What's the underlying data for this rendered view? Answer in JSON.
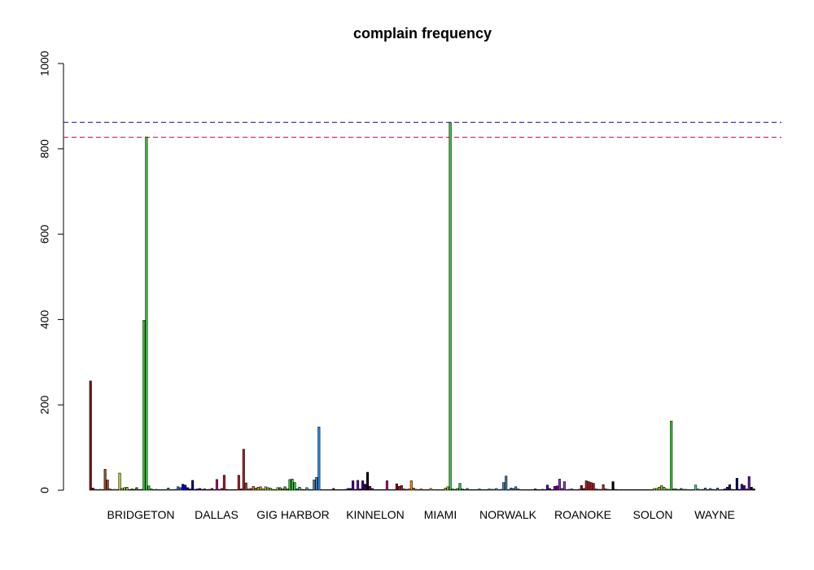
{
  "chart_data": {
    "type": "bar",
    "title": "complain frequency",
    "xlabel": "",
    "ylabel": "",
    "ylim": [
      0,
      1000
    ],
    "yticks": [
      "0",
      "200",
      "400",
      "600",
      "800",
      "1000"
    ],
    "x_tick_labels": [
      "BRIDGETON",
      "DALLAS",
      "GIG HARBOR",
      "KINNELON",
      "MIAMI",
      "NORWALK",
      "ROANOKE",
      "SOLON",
      "WAYNE"
    ],
    "reference_lines": [
      {
        "value": 862,
        "color": "#0000cc",
        "style": "dashed"
      },
      {
        "value": 827,
        "color": "#cc0033",
        "style": "dashed"
      }
    ],
    "bars": [
      {
        "value": 256,
        "color": "#8b0000"
      },
      {
        "value": 5,
        "color": "#8b0000"
      },
      {
        "value": 2,
        "color": "#556b2f"
      },
      {
        "value": 1,
        "color": "#a0522d"
      },
      {
        "value": 2,
        "color": "#a0522d"
      },
      {
        "value": 1,
        "color": "#556b2f"
      },
      {
        "value": 49,
        "color": "#a0522d"
      },
      {
        "value": 24,
        "color": "#a0522d"
      },
      {
        "value": 3,
        "color": "#d2691e"
      },
      {
        "value": 1,
        "color": "#556b2f"
      },
      {
        "value": 2,
        "color": "#eeee00"
      },
      {
        "value": 1,
        "color": "#556b2f"
      },
      {
        "value": 40,
        "color": "#cccc33"
      },
      {
        "value": 4,
        "color": "#9acd32"
      },
      {
        "value": 6,
        "color": "#9acd32"
      },
      {
        "value": 7,
        "color": "#9acd32"
      },
      {
        "value": 1,
        "color": "#9acd32"
      },
      {
        "value": 3,
        "color": "#556b2f"
      },
      {
        "value": 2,
        "color": "#556b2f"
      },
      {
        "value": 6,
        "color": "#556b2f"
      },
      {
        "value": 1,
        "color": "#556b2f"
      },
      {
        "value": 2,
        "color": "#556b2f"
      },
      {
        "value": 398,
        "color": "#32cd32"
      },
      {
        "value": 828,
        "color": "#32cd32"
      },
      {
        "value": 10,
        "color": "#32cd32"
      },
      {
        "value": 3,
        "color": "#3cb371"
      },
      {
        "value": 1,
        "color": "#2e8b57"
      },
      {
        "value": 2,
        "color": "#2e8b57"
      },
      {
        "value": 1,
        "color": "#2e8b57"
      },
      {
        "value": 1,
        "color": "#2e8b57"
      },
      {
        "value": 1,
        "color": "#2e8b57"
      },
      {
        "value": 1,
        "color": "#2e8b57"
      },
      {
        "value": 5,
        "color": "#2e8b57"
      },
      {
        "value": 1,
        "color": "#2e8b57"
      },
      {
        "value": 1,
        "color": "#2e8b57"
      },
      {
        "value": 2,
        "color": "#4682b4"
      },
      {
        "value": 8,
        "color": "#4169e1"
      },
      {
        "value": 6,
        "color": "#4169e1"
      },
      {
        "value": 14,
        "color": "#0000cd"
      },
      {
        "value": 12,
        "color": "#0000cd"
      },
      {
        "value": 6,
        "color": "#0000cd"
      },
      {
        "value": 3,
        "color": "#4b0082"
      },
      {
        "value": 23,
        "color": "#00008b"
      },
      {
        "value": 2,
        "color": "#4b0082"
      },
      {
        "value": 3,
        "color": "#4b0082"
      },
      {
        "value": 4,
        "color": "#4b0082"
      },
      {
        "value": 2,
        "color": "#800080"
      },
      {
        "value": 3,
        "color": "#800080"
      },
      {
        "value": 1,
        "color": "#800080"
      },
      {
        "value": 2,
        "color": "#800080"
      },
      {
        "value": 4,
        "color": "#800080"
      },
      {
        "value": 1,
        "color": "#800080"
      },
      {
        "value": 25,
        "color": "#c71585"
      },
      {
        "value": 2,
        "color": "#c71585"
      },
      {
        "value": 4,
        "color": "#c71585"
      },
      {
        "value": 35,
        "color": "#b22222"
      },
      {
        "value": 2,
        "color": "#8b0000"
      },
      {
        "value": 1,
        "color": "#8b0000"
      },
      {
        "value": 1,
        "color": "#8b0000"
      },
      {
        "value": 1,
        "color": "#8b0000"
      },
      {
        "value": 1,
        "color": "#8b0000"
      },
      {
        "value": 35,
        "color": "#b22222"
      },
      {
        "value": 3,
        "color": "#8b0000"
      },
      {
        "value": 96,
        "color": "#b22222"
      },
      {
        "value": 17,
        "color": "#a0522d"
      },
      {
        "value": 3,
        "color": "#a0522d"
      },
      {
        "value": 4,
        "color": "#a0522d"
      },
      {
        "value": 9,
        "color": "#cd853f"
      },
      {
        "value": 5,
        "color": "#d2691e"
      },
      {
        "value": 7,
        "color": "#daa520"
      },
      {
        "value": 8,
        "color": "#daa520"
      },
      {
        "value": 3,
        "color": "#bdb76b"
      },
      {
        "value": 8,
        "color": "#bdb76b"
      },
      {
        "value": 6,
        "color": "#9acd32"
      },
      {
        "value": 5,
        "color": "#9acd32"
      },
      {
        "value": 2,
        "color": "#9acd32"
      },
      {
        "value": 1,
        "color": "#9acd32"
      },
      {
        "value": 6,
        "color": "#9acd32"
      },
      {
        "value": 6,
        "color": "#6b8e23"
      },
      {
        "value": 3,
        "color": "#6b8e23"
      },
      {
        "value": 8,
        "color": "#6b8e23"
      },
      {
        "value": 3,
        "color": "#228b22"
      },
      {
        "value": 25,
        "color": "#32cd32"
      },
      {
        "value": 26,
        "color": "#32cd32"
      },
      {
        "value": 18,
        "color": "#32cd32"
      },
      {
        "value": 3,
        "color": "#2e8b57"
      },
      {
        "value": 7,
        "color": "#3cb371"
      },
      {
        "value": 2,
        "color": "#2e8b57"
      },
      {
        "value": 1,
        "color": "#2e8b57"
      },
      {
        "value": 6,
        "color": "#20b2aa"
      },
      {
        "value": 2,
        "color": "#20b2aa"
      },
      {
        "value": 1,
        "color": "#20b2aa"
      },
      {
        "value": 24,
        "color": "#4682b4"
      },
      {
        "value": 30,
        "color": "#4682b4"
      },
      {
        "value": 148,
        "color": "#1e90ff"
      },
      {
        "value": 1,
        "color": "#4682b4"
      },
      {
        "value": 1,
        "color": "#4682b4"
      },
      {
        "value": 1,
        "color": "#4682b4"
      },
      {
        "value": 1,
        "color": "#4682b4"
      },
      {
        "value": 1,
        "color": "#4682b4"
      },
      {
        "value": 4,
        "color": "#191970"
      },
      {
        "value": 1,
        "color": "#191970"
      },
      {
        "value": 1,
        "color": "#191970"
      },
      {
        "value": 1,
        "color": "#191970"
      },
      {
        "value": 1,
        "color": "#191970"
      },
      {
        "value": 2,
        "color": "#191970"
      },
      {
        "value": 4,
        "color": "#191970"
      },
      {
        "value": 4,
        "color": "#191970"
      },
      {
        "value": 22,
        "color": "#4b0082"
      },
      {
        "value": 2,
        "color": "#4b0082"
      },
      {
        "value": 23,
        "color": "#6a0dad"
      },
      {
        "value": 3,
        "color": "#4b0082"
      },
      {
        "value": 22,
        "color": "#4b0082"
      },
      {
        "value": 14,
        "color": "#4b0082"
      },
      {
        "value": 42,
        "color": "#000000"
      },
      {
        "value": 9,
        "color": "#800080"
      },
      {
        "value": 4,
        "color": "#800080"
      },
      {
        "value": 1,
        "color": "#800080"
      },
      {
        "value": 1,
        "color": "#800080"
      },
      {
        "value": 1,
        "color": "#800080"
      },
      {
        "value": 1,
        "color": "#800080"
      },
      {
        "value": 1,
        "color": "#800080"
      },
      {
        "value": 22,
        "color": "#c71585"
      },
      {
        "value": 1,
        "color": "#c71585"
      },
      {
        "value": 1,
        "color": "#c71585"
      },
      {
        "value": 1,
        "color": "#c71585"
      },
      {
        "value": 15,
        "color": "#8b0000"
      },
      {
        "value": 9,
        "color": "#a52a2a"
      },
      {
        "value": 11,
        "color": "#a52a2a"
      },
      {
        "value": 3,
        "color": "#a52a2a"
      },
      {
        "value": 2,
        "color": "#a52a2a"
      },
      {
        "value": 3,
        "color": "#cd853f"
      },
      {
        "value": 22,
        "color": "#ff8c00"
      },
      {
        "value": 5,
        "color": "#d2691e"
      },
      {
        "value": 2,
        "color": "#d2691e"
      },
      {
        "value": 1,
        "color": "#d2691e"
      },
      {
        "value": 3,
        "color": "#d2691e"
      },
      {
        "value": 1,
        "color": "#d2691e"
      },
      {
        "value": 1,
        "color": "#d2691e"
      },
      {
        "value": 1,
        "color": "#d2691e"
      },
      {
        "value": 4,
        "color": "#daa520"
      },
      {
        "value": 1,
        "color": "#daa520"
      },
      {
        "value": 1,
        "color": "#daa520"
      },
      {
        "value": 1,
        "color": "#daa520"
      },
      {
        "value": 1,
        "color": "#daa520"
      },
      {
        "value": 1,
        "color": "#daa520"
      },
      {
        "value": 5,
        "color": "#9acd32"
      },
      {
        "value": 8,
        "color": "#9acd32"
      },
      {
        "value": 862,
        "color": "#32cd32"
      },
      {
        "value": 3,
        "color": "#32cd32"
      },
      {
        "value": 2,
        "color": "#32cd32"
      },
      {
        "value": 4,
        "color": "#32cd32"
      },
      {
        "value": 16,
        "color": "#32cd32"
      },
      {
        "value": 3,
        "color": "#2e8b57"
      },
      {
        "value": 1,
        "color": "#2e8b57"
      },
      {
        "value": 4,
        "color": "#2e8b57"
      },
      {
        "value": 1,
        "color": "#2e8b57"
      },
      {
        "value": 1,
        "color": "#2e8b57"
      },
      {
        "value": 1,
        "color": "#2e8b57"
      },
      {
        "value": 1,
        "color": "#2e8b57"
      },
      {
        "value": 3,
        "color": "#2e8b57"
      },
      {
        "value": 1,
        "color": "#2e8b57"
      },
      {
        "value": 1,
        "color": "#2e8b57"
      },
      {
        "value": 1,
        "color": "#2e8b57"
      },
      {
        "value": 3,
        "color": "#20b2aa"
      },
      {
        "value": 2,
        "color": "#20b2aa"
      },
      {
        "value": 2,
        "color": "#20b2aa"
      },
      {
        "value": 4,
        "color": "#20b2aa"
      },
      {
        "value": 1,
        "color": "#20b2aa"
      },
      {
        "value": 2,
        "color": "#20b2aa"
      },
      {
        "value": 18,
        "color": "#4682b4"
      },
      {
        "value": 33,
        "color": "#4682b4"
      },
      {
        "value": 1,
        "color": "#4682b4"
      },
      {
        "value": 5,
        "color": "#4682b4"
      },
      {
        "value": 4,
        "color": "#4682b4"
      },
      {
        "value": 8,
        "color": "#4682b4"
      },
      {
        "value": 3,
        "color": "#4682b4"
      },
      {
        "value": 1,
        "color": "#4682b4"
      },
      {
        "value": 1,
        "color": "#4682b4"
      },
      {
        "value": 1,
        "color": "#4682b4"
      },
      {
        "value": 1,
        "color": "#4682b4"
      },
      {
        "value": 1,
        "color": "#4682b4"
      },
      {
        "value": 1,
        "color": "#4682b4"
      },
      {
        "value": 3,
        "color": "#191970"
      },
      {
        "value": 1,
        "color": "#191970"
      },
      {
        "value": 1,
        "color": "#191970"
      },
      {
        "value": 2,
        "color": "#191970"
      },
      {
        "value": 1,
        "color": "#191970"
      },
      {
        "value": 12,
        "color": "#6a0dad"
      },
      {
        "value": 4,
        "color": "#6a0dad"
      },
      {
        "value": 1,
        "color": "#6a0dad"
      },
      {
        "value": 9,
        "color": "#8b008b"
      },
      {
        "value": 10,
        "color": "#8b008b"
      },
      {
        "value": 26,
        "color": "#9932cc"
      },
      {
        "value": 4,
        "color": "#9932cc"
      },
      {
        "value": 20,
        "color": "#9932cc"
      },
      {
        "value": 1,
        "color": "#9932cc"
      },
      {
        "value": 2,
        "color": "#9932cc"
      },
      {
        "value": 3,
        "color": "#9932cc"
      },
      {
        "value": 1,
        "color": "#9932cc"
      },
      {
        "value": 1,
        "color": "#9932cc"
      },
      {
        "value": 2,
        "color": "#9932cc"
      },
      {
        "value": 11,
        "color": "#8b0000"
      },
      {
        "value": 4,
        "color": "#8b0000"
      },
      {
        "value": 22,
        "color": "#b22222"
      },
      {
        "value": 20,
        "color": "#b22222"
      },
      {
        "value": 18,
        "color": "#b22222"
      },
      {
        "value": 16,
        "color": "#b22222"
      },
      {
        "value": 3,
        "color": "#a52a2a"
      },
      {
        "value": 2,
        "color": "#a52a2a"
      },
      {
        "value": 2,
        "color": "#a52a2a"
      },
      {
        "value": 13,
        "color": "#a52a2a"
      },
      {
        "value": 3,
        "color": "#a52a2a"
      },
      {
        "value": 2,
        "color": "#a52a2a"
      },
      {
        "value": 1,
        "color": "#a52a2a"
      },
      {
        "value": 20,
        "color": "#000000"
      },
      {
        "value": 2,
        "color": "#556b2f"
      },
      {
        "value": 1,
        "color": "#556b2f"
      },
      {
        "value": 1,
        "color": "#556b2f"
      },
      {
        "value": 1,
        "color": "#556b2f"
      },
      {
        "value": 1,
        "color": "#556b2f"
      },
      {
        "value": 1,
        "color": "#556b2f"
      },
      {
        "value": 1,
        "color": "#556b2f"
      },
      {
        "value": 1,
        "color": "#556b2f"
      },
      {
        "value": 1,
        "color": "#556b2f"
      },
      {
        "value": 1,
        "color": "#556b2f"
      },
      {
        "value": 1,
        "color": "#556b2f"
      },
      {
        "value": 1,
        "color": "#556b2f"
      },
      {
        "value": 1,
        "color": "#556b2f"
      },
      {
        "value": 1,
        "color": "#556b2f"
      },
      {
        "value": 1,
        "color": "#556b2f"
      },
      {
        "value": 1,
        "color": "#556b2f"
      },
      {
        "value": 4,
        "color": "#9acd32"
      },
      {
        "value": 4,
        "color": "#9acd32"
      },
      {
        "value": 7,
        "color": "#9acd32"
      },
      {
        "value": 11,
        "color": "#9acd32"
      },
      {
        "value": 7,
        "color": "#9acd32"
      },
      {
        "value": 3,
        "color": "#9acd32"
      },
      {
        "value": 2,
        "color": "#9acd32"
      },
      {
        "value": 162,
        "color": "#32cd32"
      },
      {
        "value": 3,
        "color": "#2e8b57"
      },
      {
        "value": 3,
        "color": "#2e8b57"
      },
      {
        "value": 1,
        "color": "#2e8b57"
      },
      {
        "value": 4,
        "color": "#2e8b57"
      },
      {
        "value": 2,
        "color": "#2e8b57"
      },
      {
        "value": 2,
        "color": "#2e8b57"
      },
      {
        "value": 1,
        "color": "#2e8b57"
      },
      {
        "value": 1,
        "color": "#2e8b57"
      },
      {
        "value": 1,
        "color": "#2e8b57"
      },
      {
        "value": 12,
        "color": "#66cdaa"
      },
      {
        "value": 3,
        "color": "#66cdaa"
      },
      {
        "value": 1,
        "color": "#20b2aa"
      },
      {
        "value": 2,
        "color": "#20b2aa"
      },
      {
        "value": 5,
        "color": "#4682b4"
      },
      {
        "value": 1,
        "color": "#4682b4"
      },
      {
        "value": 4,
        "color": "#4682b4"
      },
      {
        "value": 2,
        "color": "#4682b4"
      },
      {
        "value": 1,
        "color": "#4682b4"
      },
      {
        "value": 5,
        "color": "#4682b4"
      },
      {
        "value": 1,
        "color": "#4682b4"
      },
      {
        "value": 1,
        "color": "#4682b4"
      },
      {
        "value": 3,
        "color": "#191970"
      },
      {
        "value": 7,
        "color": "#191970"
      },
      {
        "value": 13,
        "color": "#191970"
      },
      {
        "value": 2,
        "color": "#191970"
      },
      {
        "value": 1,
        "color": "#191970"
      },
      {
        "value": 28,
        "color": "#000080"
      },
      {
        "value": 2,
        "color": "#000080"
      },
      {
        "value": 14,
        "color": "#4b0082"
      },
      {
        "value": 11,
        "color": "#4b0082"
      },
      {
        "value": 3,
        "color": "#4b0082"
      },
      {
        "value": 32,
        "color": "#6a0dad"
      },
      {
        "value": 7,
        "color": "#000000"
      },
      {
        "value": 3,
        "color": "#000000"
      }
    ]
  }
}
